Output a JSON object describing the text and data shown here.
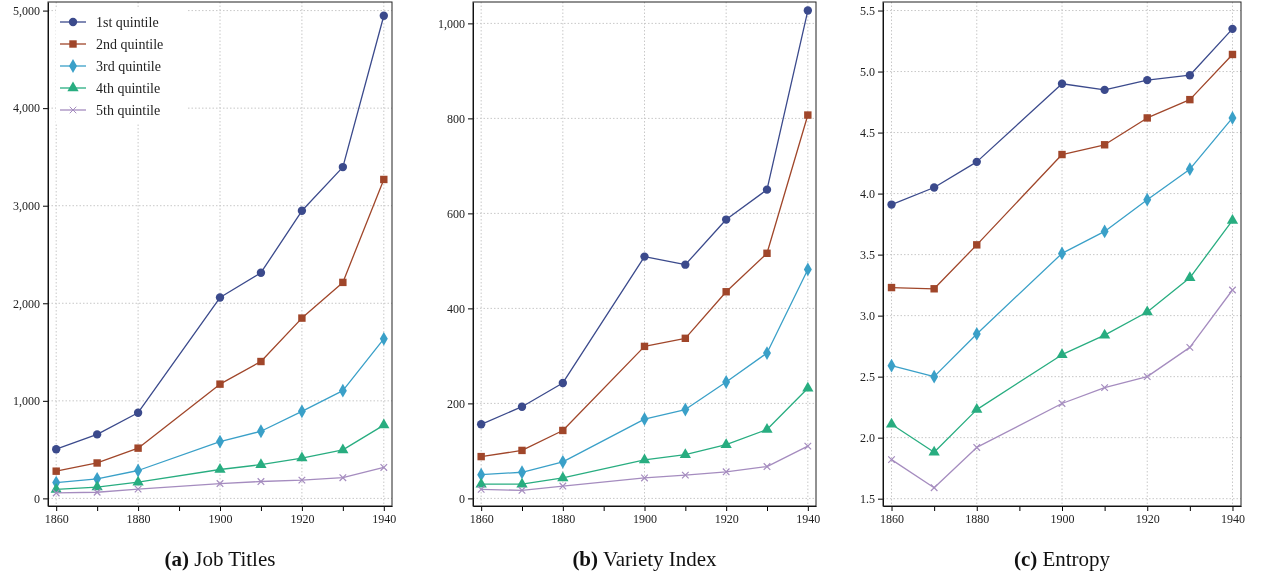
{
  "chart_data": [
    {
      "type": "line",
      "title": "(a) Job Titles",
      "x": [
        1860,
        1870,
        1880,
        1900,
        1910,
        1920,
        1930,
        1940
      ],
      "xlim": [
        1858,
        1942
      ],
      "xticks": [
        1860,
        {
          "value": 1870,
          "label": null
        },
        1880,
        {
          "value": 1890,
          "label": null
        },
        1900,
        {
          "value": 1910,
          "label": null
        },
        1920,
        {
          "value": 1930,
          "label": null
        },
        1940
      ],
      "ylim": [
        -78,
        5088
      ],
      "yticks": [
        0,
        {
          "value": 1000,
          "label": "1,000"
        },
        {
          "value": 2000,
          "label": "2,000"
        },
        {
          "value": 3000,
          "label": "3,000"
        },
        {
          "value": 4000,
          "label": "4,000"
        },
        {
          "value": 5000,
          "label": "5,000"
        }
      ],
      "grid": true,
      "legend": "top left",
      "series": [
        {
          "name": "1st quintile",
          "color": "#3b4a8c",
          "marker": "circle",
          "values": [
            504,
            656,
            878,
            2059,
            2313,
            2948,
            3396,
            4947
          ]
        },
        {
          "name": "2nd quintile",
          "color": "#a0462a",
          "marker": "square",
          "values": [
            279,
            363,
            515,
            1171,
            1403,
            1848,
            2214,
            3269
          ]
        },
        {
          "name": "3rd quintile",
          "color": "#3aa0c8",
          "marker": "diamond",
          "values": [
            162,
            201,
            286,
            582,
            688,
            892,
            1104,
            1636
          ]
        },
        {
          "name": "4th quintile",
          "color": "#28ad80",
          "marker": "triangle",
          "values": [
            92,
            116,
            166,
            296,
            346,
            413,
            497,
            751
          ]
        },
        {
          "name": "5th quintile",
          "color": "#a58cbf",
          "marker": "cross",
          "values": [
            56,
            63,
            95,
            152,
            173,
            187,
            212,
            317
          ]
        }
      ]
    },
    {
      "type": "line",
      "title": "(b) Variety Index",
      "x": [
        1860,
        1870,
        1880,
        1900,
        1910,
        1920,
        1930,
        1940
      ],
      "xlim": [
        1858,
        1942
      ],
      "xticks": [
        1860,
        {
          "value": 1870,
          "label": null
        },
        1880,
        {
          "value": 1890,
          "label": null
        },
        1900,
        {
          "value": 1910,
          "label": null
        },
        1920,
        {
          "value": 1930,
          "label": null
        },
        1940
      ],
      "ylim": [
        -16,
        1045
      ],
      "yticks": [
        0,
        200,
        400,
        600,
        800,
        {
          "value": 1000,
          "label": "1,000"
        }
      ],
      "grid": true,
      "legend": false,
      "series": [
        {
          "color": "#3b4a8c",
          "marker": "circle",
          "values": [
            156,
            193,
            243,
            509,
            492,
            587,
            650,
            1027
          ]
        },
        {
          "color": "#a0462a",
          "marker": "square",
          "values": [
            88,
            101,
            143,
            320,
            337,
            435,
            516,
            807
          ]
        },
        {
          "color": "#3aa0c8",
          "marker": "diamond",
          "values": [
            50,
            55,
            77,
            167,
            187,
            245,
            306,
            482
          ]
        },
        {
          "color": "#28ad80",
          "marker": "triangle",
          "values": [
            30,
            30,
            43,
            81,
            92,
            113,
            145,
            232
          ]
        },
        {
          "color": "#a58cbf",
          "marker": "cross",
          "values": [
            19,
            17,
            26,
            43,
            49,
            56,
            67,
            110
          ]
        }
      ]
    },
    {
      "type": "line",
      "title": "(c) Entropy",
      "x": [
        1860,
        1870,
        1880,
        1900,
        1910,
        1920,
        1930,
        1940
      ],
      "xlim": [
        1858,
        1942
      ],
      "xticks": [
        1860,
        {
          "value": 1870,
          "label": null
        },
        1880,
        {
          "value": 1890,
          "label": null
        },
        1900,
        {
          "value": 1910,
          "label": null
        },
        1920,
        {
          "value": 1930,
          "label": null
        },
        1940
      ],
      "ylim": [
        1.44,
        5.57
      ],
      "yticks": [
        1.5,
        {
          "value": 2,
          "label": "2.0"
        },
        2.5,
        {
          "value": 3,
          "label": "3.0"
        },
        3.5,
        {
          "value": 4,
          "label": "4.0"
        },
        4.5,
        {
          "value": 5,
          "label": "5.0"
        },
        5.5
      ],
      "grid": true,
      "legend": false,
      "series": [
        {
          "color": "#3b4a8c",
          "marker": "circle",
          "values": [
            3.91,
            4.05,
            4.26,
            4.9,
            4.85,
            4.93,
            4.97,
            5.35
          ]
        },
        {
          "color": "#a0462a",
          "marker": "square",
          "values": [
            3.23,
            3.22,
            3.58,
            4.32,
            4.4,
            4.62,
            4.77,
            5.14
          ]
        },
        {
          "color": "#3aa0c8",
          "marker": "diamond",
          "values": [
            2.59,
            2.5,
            2.85,
            3.51,
            3.69,
            3.95,
            4.2,
            4.62
          ]
        },
        {
          "color": "#28ad80",
          "marker": "triangle",
          "values": [
            2.11,
            1.88,
            2.23,
            2.68,
            2.84,
            3.03,
            3.31,
            3.78
          ]
        },
        {
          "color": "#a58cbf",
          "marker": "cross",
          "values": [
            1.82,
            1.59,
            1.92,
            2.28,
            2.41,
            2.5,
            2.74,
            3.21
          ]
        }
      ]
    }
  ]
}
